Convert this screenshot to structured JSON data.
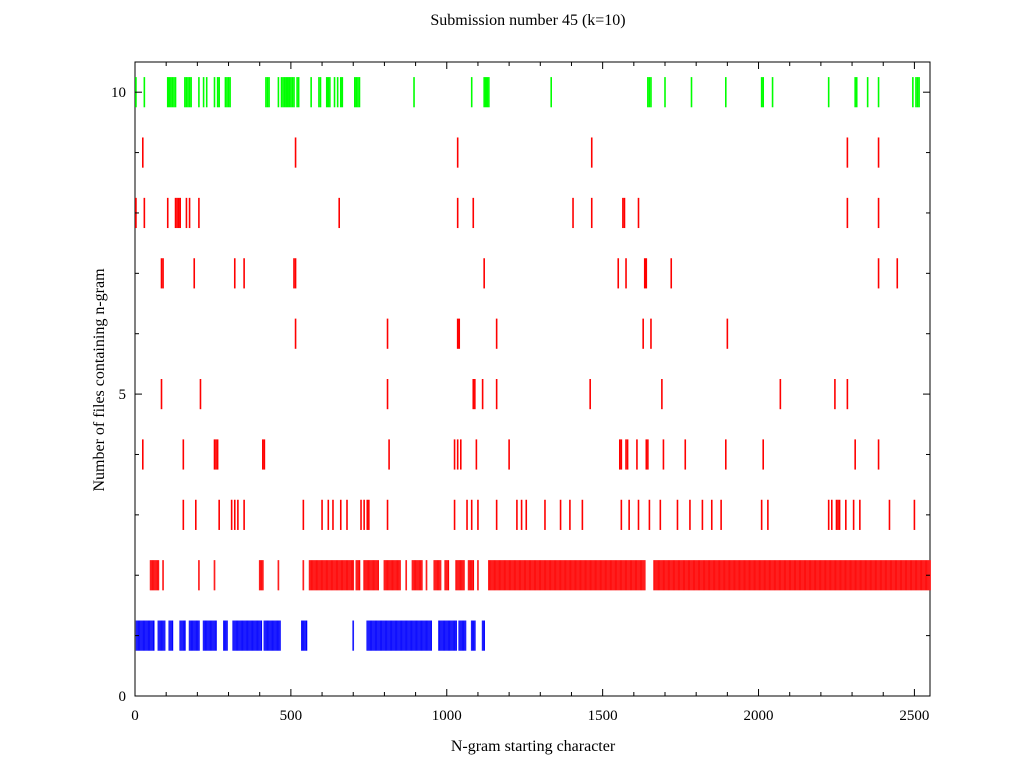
{
  "chart_data": {
    "type": "scatter",
    "title": "Submission number 45 (k=10)",
    "xlabel": "N-gram starting character",
    "ylabel": "Number of files containing n-gram",
    "xlim": [
      0,
      2550
    ],
    "ylim": [
      0,
      10.5
    ],
    "x_ticks": [
      0,
      500,
      1000,
      1500,
      2000,
      2500
    ],
    "y_ticks": [
      0,
      5,
      10
    ],
    "y_minor_ticks": [
      1,
      2,
      3,
      4,
      6,
      7,
      8,
      9
    ],
    "grid": false,
    "legend": "none",
    "mark": "vertical tick, height 0.5 centered on y",
    "colors": {
      "1": "#0000ff",
      "2-9": "#ff0000",
      "10": "#00ff00"
    },
    "series": [
      {
        "y": 10,
        "x": [
          3,
          30,
          105,
          110,
          115,
          120,
          125,
          130,
          160,
          165,
          170,
          175,
          180,
          205,
          220,
          230,
          255,
          265,
          270,
          290,
          295,
          300,
          305,
          420,
          425,
          430,
          460,
          470,
          475,
          480,
          485,
          490,
          495,
          500,
          505,
          510,
          520,
          525,
          565,
          590,
          595,
          615,
          620,
          625,
          640,
          650,
          660,
          665,
          705,
          710,
          715,
          720,
          895,
          1080,
          1120,
          1125,
          1130,
          1135,
          1335,
          1645,
          1650,
          1655,
          1700,
          1785,
          1895,
          2010,
          2015,
          2045,
          2225,
          2310,
          2315,
          2350,
          2385,
          2495,
          2505,
          2510,
          2515
        ]
      },
      {
        "y": 9,
        "x": [
          25,
          515,
          1035,
          1465,
          2285,
          2385
        ]
      },
      {
        "y": 8,
        "x": [
          3,
          30,
          105,
          130,
          135,
          140,
          145,
          165,
          175,
          205,
          655,
          1035,
          1085,
          1405,
          1465,
          1565,
          1570,
          1615,
          2285,
          2385
        ]
      },
      {
        "y": 7,
        "x": [
          85,
          90,
          190,
          320,
          350,
          510,
          515,
          1120,
          1550,
          1575,
          1635,
          1640,
          1720,
          2385,
          2445
        ]
      },
      {
        "y": 6,
        "x": [
          515,
          810,
          1035,
          1040,
          1160,
          1630,
          1655,
          1900
        ]
      },
      {
        "y": 5,
        "x": [
          85,
          210,
          810,
          1085,
          1090,
          1115,
          1160,
          1460,
          1690,
          2070,
          2245,
          2285
        ]
      },
      {
        "y": 4,
        "x": [
          25,
          155,
          255,
          260,
          265,
          410,
          415,
          815,
          1025,
          1035,
          1045,
          1095,
          1200,
          1555,
          1560,
          1575,
          1580,
          1610,
          1640,
          1645,
          1695,
          1765,
          1895,
          2015,
          2310,
          2385
        ]
      },
      {
        "y": 3,
        "x": [
          155,
          195,
          270,
          310,
          320,
          330,
          350,
          540,
          600,
          620,
          635,
          660,
          680,
          725,
          735,
          745,
          750,
          810,
          1025,
          1065,
          1080,
          1100,
          1160,
          1225,
          1240,
          1255,
          1315,
          1365,
          1395,
          1435,
          1560,
          1585,
          1615,
          1650,
          1685,
          1740,
          1780,
          1820,
          1850,
          1880,
          2010,
          2030,
          2225,
          2235,
          2250,
          2255,
          2260,
          2280,
          2305,
          2325,
          2420,
          2500
        ]
      },
      {
        "y": 2,
        "segments": [
          [
            50,
            75
          ],
          [
            90,
            90
          ],
          [
            205,
            205
          ],
          [
            255,
            255
          ],
          [
            400,
            410
          ],
          [
            460,
            460
          ],
          [
            540,
            540
          ],
          [
            560,
            700
          ],
          [
            710,
            720
          ],
          [
            735,
            780
          ],
          [
            800,
            850
          ],
          [
            870,
            870
          ],
          [
            890,
            920
          ],
          [
            935,
            935
          ],
          [
            960,
            980
          ],
          [
            995,
            1005
          ],
          [
            1030,
            1055
          ],
          [
            1070,
            1085
          ],
          [
            1100,
            1100
          ],
          [
            1135,
            1635
          ],
          [
            1665,
            2550
          ]
        ]
      },
      {
        "y": 1,
        "segments": [
          [
            5,
            60
          ],
          [
            75,
            95
          ],
          [
            110,
            120
          ],
          [
            145,
            160
          ],
          [
            175,
            205
          ],
          [
            220,
            260
          ],
          [
            285,
            295
          ],
          [
            315,
            405
          ],
          [
            415,
            465
          ],
          [
            535,
            550
          ],
          [
            700,
            700
          ],
          [
            745,
            950
          ],
          [
            975,
            1030
          ],
          [
            1040,
            1060
          ],
          [
            1080,
            1090
          ],
          [
            1115,
            1120
          ]
        ]
      }
    ]
  }
}
